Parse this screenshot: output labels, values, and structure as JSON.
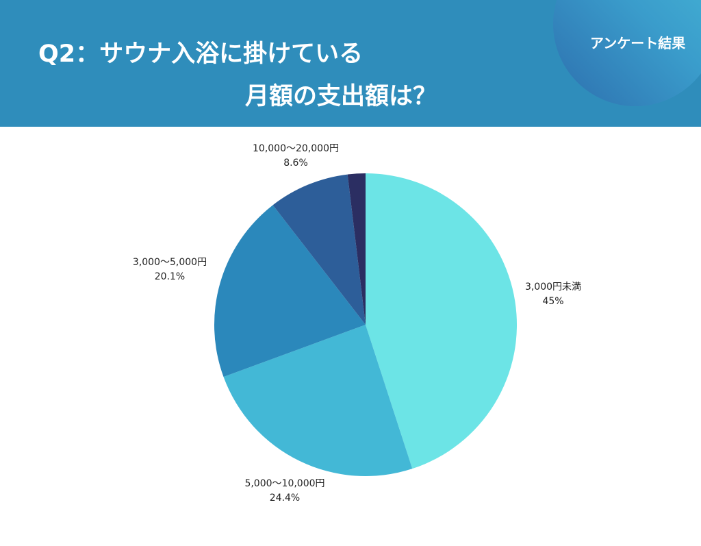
{
  "header": {
    "title_line1": "Q2：サウナ入浴に掛けている",
    "title_line2": "月額の支出額は？",
    "badge": "アンケート結果",
    "bg_color": "#2f8dbb"
  },
  "chart_data": {
    "type": "pie",
    "title": "",
    "slices": [
      {
        "label": "3,000円未満",
        "value": 45,
        "value_label": "45%",
        "color": "#6ce4e6"
      },
      {
        "label": "5,000〜10,000円",
        "value": 24.4,
        "value_label": "24.4%",
        "color": "#43b8d6"
      },
      {
        "label": "3,000〜5,000円",
        "value": 20.1,
        "value_label": "20.1%",
        "color": "#2b88bb"
      },
      {
        "label": "10,000〜20,000円",
        "value": 8.6,
        "value_label": "8.6%",
        "color": "#2d5e99"
      },
      {
        "label": "",
        "value": 1.9,
        "value_label": "",
        "color": "#2b2e62"
      }
    ]
  }
}
